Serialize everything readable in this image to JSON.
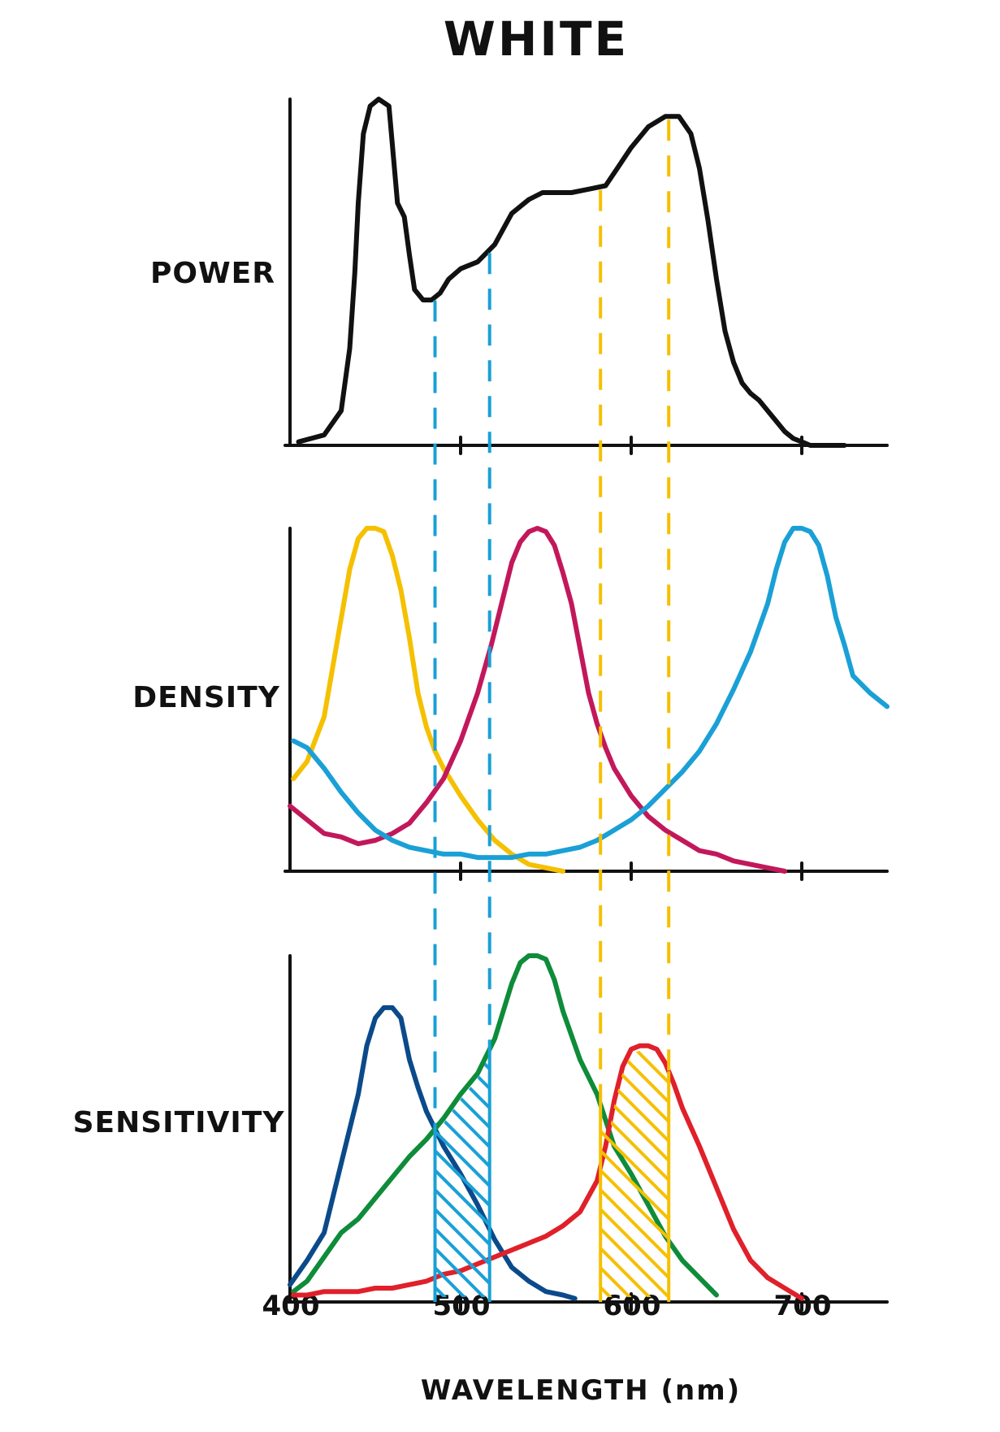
{
  "colors": {
    "axis": "#111111",
    "power": "#111111",
    "yellow_dye": "#F5C000",
    "magenta_dye": "#C2185B",
    "cyan_dye": "#1AA0D6",
    "blue_sens": "#0B4A8A",
    "green_sens": "#0E8C3A",
    "red_sens": "#E0202A",
    "cyan_band": "#1AA0D6",
    "yellow_band": "#F5C000"
  },
  "chart_data": {
    "type": "line",
    "title": "WHITE",
    "xlabel": "WAVELENGTH (nm)",
    "xlim": [
      400,
      750
    ],
    "x_ticks": [
      400,
      500,
      600,
      700
    ],
    "x_tick_labels": [
      "400",
      "500",
      "600",
      "700"
    ],
    "panels": [
      {
        "ylabel": "POWER",
        "ylim": [
          0,
          1
        ],
        "series": [
          {
            "color_key": "power",
            "x": [
              405,
              420,
              430,
              435,
              438,
              440,
              443,
              447,
              452,
              458,
              463,
              467,
              470,
              473,
              478,
              483,
              488,
              493,
              500,
              510,
              520,
              530,
              540,
              548,
              555,
              565,
              575,
              585,
              600,
              610,
              620,
              628,
              635,
              640,
              645,
              650,
              655,
              660,
              665,
              670,
              675,
              680,
              685,
              690,
              695,
              700,
              705,
              710,
              715,
              720,
              725
            ],
            "y": [
              0.01,
              0.03,
              0.1,
              0.28,
              0.5,
              0.7,
              0.9,
              0.98,
              1.0,
              0.98,
              0.7,
              0.66,
              0.55,
              0.45,
              0.42,
              0.42,
              0.44,
              0.48,
              0.51,
              0.53,
              0.58,
              0.67,
              0.71,
              0.73,
              0.73,
              0.73,
              0.74,
              0.75,
              0.86,
              0.92,
              0.95,
              0.95,
              0.9,
              0.8,
              0.65,
              0.48,
              0.33,
              0.24,
              0.18,
              0.15,
              0.13,
              0.1,
              0.07,
              0.04,
              0.02,
              0.01,
              0.0,
              0.0,
              0.0,
              0.0,
              0.0
            ]
          }
        ]
      },
      {
        "ylabel": "DENSITY",
        "ylim": [
          0,
          1
        ],
        "series": [
          {
            "color_key": "yellow_dye",
            "x": [
              402,
              410,
              420,
              428,
              435,
              440,
              445,
              450,
              455,
              460,
              465,
              470,
              475,
              480,
              485,
              490,
              495,
              500,
              510,
              520,
              530,
              540,
              550,
              560
            ],
            "y": [
              0.27,
              0.32,
              0.45,
              0.68,
              0.88,
              0.97,
              1.0,
              1.0,
              0.99,
              0.92,
              0.82,
              0.68,
              0.52,
              0.42,
              0.35,
              0.3,
              0.26,
              0.22,
              0.15,
              0.09,
              0.05,
              0.02,
              0.01,
              0.0
            ]
          },
          {
            "color_key": "magenta_dye",
            "x": [
              400,
              410,
              420,
              430,
              440,
              450,
              460,
              470,
              480,
              490,
              500,
              510,
              518,
              525,
              530,
              535,
              540,
              545,
              550,
              555,
              560,
              565,
              570,
              575,
              580,
              585,
              590,
              600,
              610,
              620,
              630,
              640,
              650,
              660,
              670,
              680,
              690
            ],
            "y": [
              0.19,
              0.15,
              0.11,
              0.1,
              0.08,
              0.09,
              0.11,
              0.14,
              0.2,
              0.27,
              0.38,
              0.52,
              0.66,
              0.8,
              0.9,
              0.96,
              0.99,
              1.0,
              0.99,
              0.95,
              0.87,
              0.78,
              0.65,
              0.52,
              0.43,
              0.36,
              0.3,
              0.22,
              0.16,
              0.12,
              0.09,
              0.06,
              0.05,
              0.03,
              0.02,
              0.01,
              0.0
            ]
          },
          {
            "color_key": "cyan_dye",
            "x": [
              402,
              410,
              420,
              430,
              440,
              450,
              460,
              470,
              480,
              490,
              500,
              510,
              520,
              530,
              540,
              550,
              560,
              570,
              580,
              590,
              600,
              610,
              620,
              630,
              640,
              650,
              660,
              670,
              680,
              685,
              690,
              695,
              700,
              705,
              710,
              715,
              720,
              725,
              730,
              740,
              750
            ],
            "y": [
              0.38,
              0.36,
              0.3,
              0.23,
              0.17,
              0.12,
              0.09,
              0.07,
              0.06,
              0.05,
              0.05,
              0.04,
              0.04,
              0.04,
              0.05,
              0.05,
              0.06,
              0.07,
              0.09,
              0.12,
              0.15,
              0.19,
              0.24,
              0.29,
              0.35,
              0.43,
              0.53,
              0.64,
              0.78,
              0.88,
              0.96,
              1.0,
              1.0,
              0.99,
              0.95,
              0.86,
              0.74,
              0.66,
              0.57,
              0.52,
              0.48
            ]
          }
        ]
      },
      {
        "ylabel": "SENSITIVITY",
        "ylim": [
          0,
          1
        ],
        "series": [
          {
            "color_key": "blue_sens",
            "x": [
              400,
              410,
              420,
              430,
              440,
              445,
              450,
              455,
              460,
              465,
              470,
              475,
              480,
              490,
              500,
              510,
              520,
              530,
              540,
              550,
              560,
              567
            ],
            "y": [
              0.05,
              0.12,
              0.2,
              0.4,
              0.6,
              0.74,
              0.82,
              0.85,
              0.85,
              0.82,
              0.7,
              0.62,
              0.55,
              0.45,
              0.37,
              0.28,
              0.18,
              0.1,
              0.06,
              0.03,
              0.02,
              0.01
            ]
          },
          {
            "color_key": "green_sens",
            "x": [
              402,
              410,
              420,
              430,
              440,
              450,
              460,
              470,
              480,
              490,
              500,
              510,
              520,
              530,
              535,
              540,
              545,
              550,
              555,
              560,
              570,
              580,
              590,
              600,
              610,
              620,
              630,
              640,
              650
            ],
            "y": [
              0.03,
              0.06,
              0.13,
              0.2,
              0.24,
              0.3,
              0.36,
              0.42,
              0.47,
              0.53,
              0.6,
              0.66,
              0.76,
              0.92,
              0.98,
              1.0,
              1.0,
              0.99,
              0.93,
              0.84,
              0.7,
              0.6,
              0.45,
              0.37,
              0.28,
              0.19,
              0.12,
              0.07,
              0.02
            ]
          },
          {
            "color_key": "red_sens",
            "x": [
              402,
              410,
              420,
              430,
              440,
              450,
              460,
              470,
              480,
              490,
              500,
              510,
              520,
              530,
              540,
              550,
              560,
              570,
              580,
              585,
              590,
              595,
              600,
              605,
              610,
              615,
              620,
              625,
              630,
              640,
              650,
              660,
              670,
              680,
              690,
              700
            ],
            "y": [
              0.02,
              0.02,
              0.03,
              0.03,
              0.03,
              0.04,
              0.04,
              0.05,
              0.06,
              0.08,
              0.09,
              0.11,
              0.13,
              0.15,
              0.17,
              0.19,
              0.22,
              0.26,
              0.35,
              0.45,
              0.58,
              0.68,
              0.73,
              0.74,
              0.74,
              0.73,
              0.69,
              0.63,
              0.56,
              0.45,
              0.33,
              0.21,
              0.12,
              0.07,
              0.04,
              0.01
            ]
          }
        ]
      }
    ],
    "marker_lines": {
      "cyan": [
        485,
        517
      ],
      "yellow": [
        582,
        622
      ]
    },
    "shaded_bands": [
      {
        "color_key": "cyan_band",
        "x_range": [
          485,
          517
        ]
      },
      {
        "color_key": "yellow_band",
        "x_range": [
          582,
          622
        ]
      }
    ]
  }
}
